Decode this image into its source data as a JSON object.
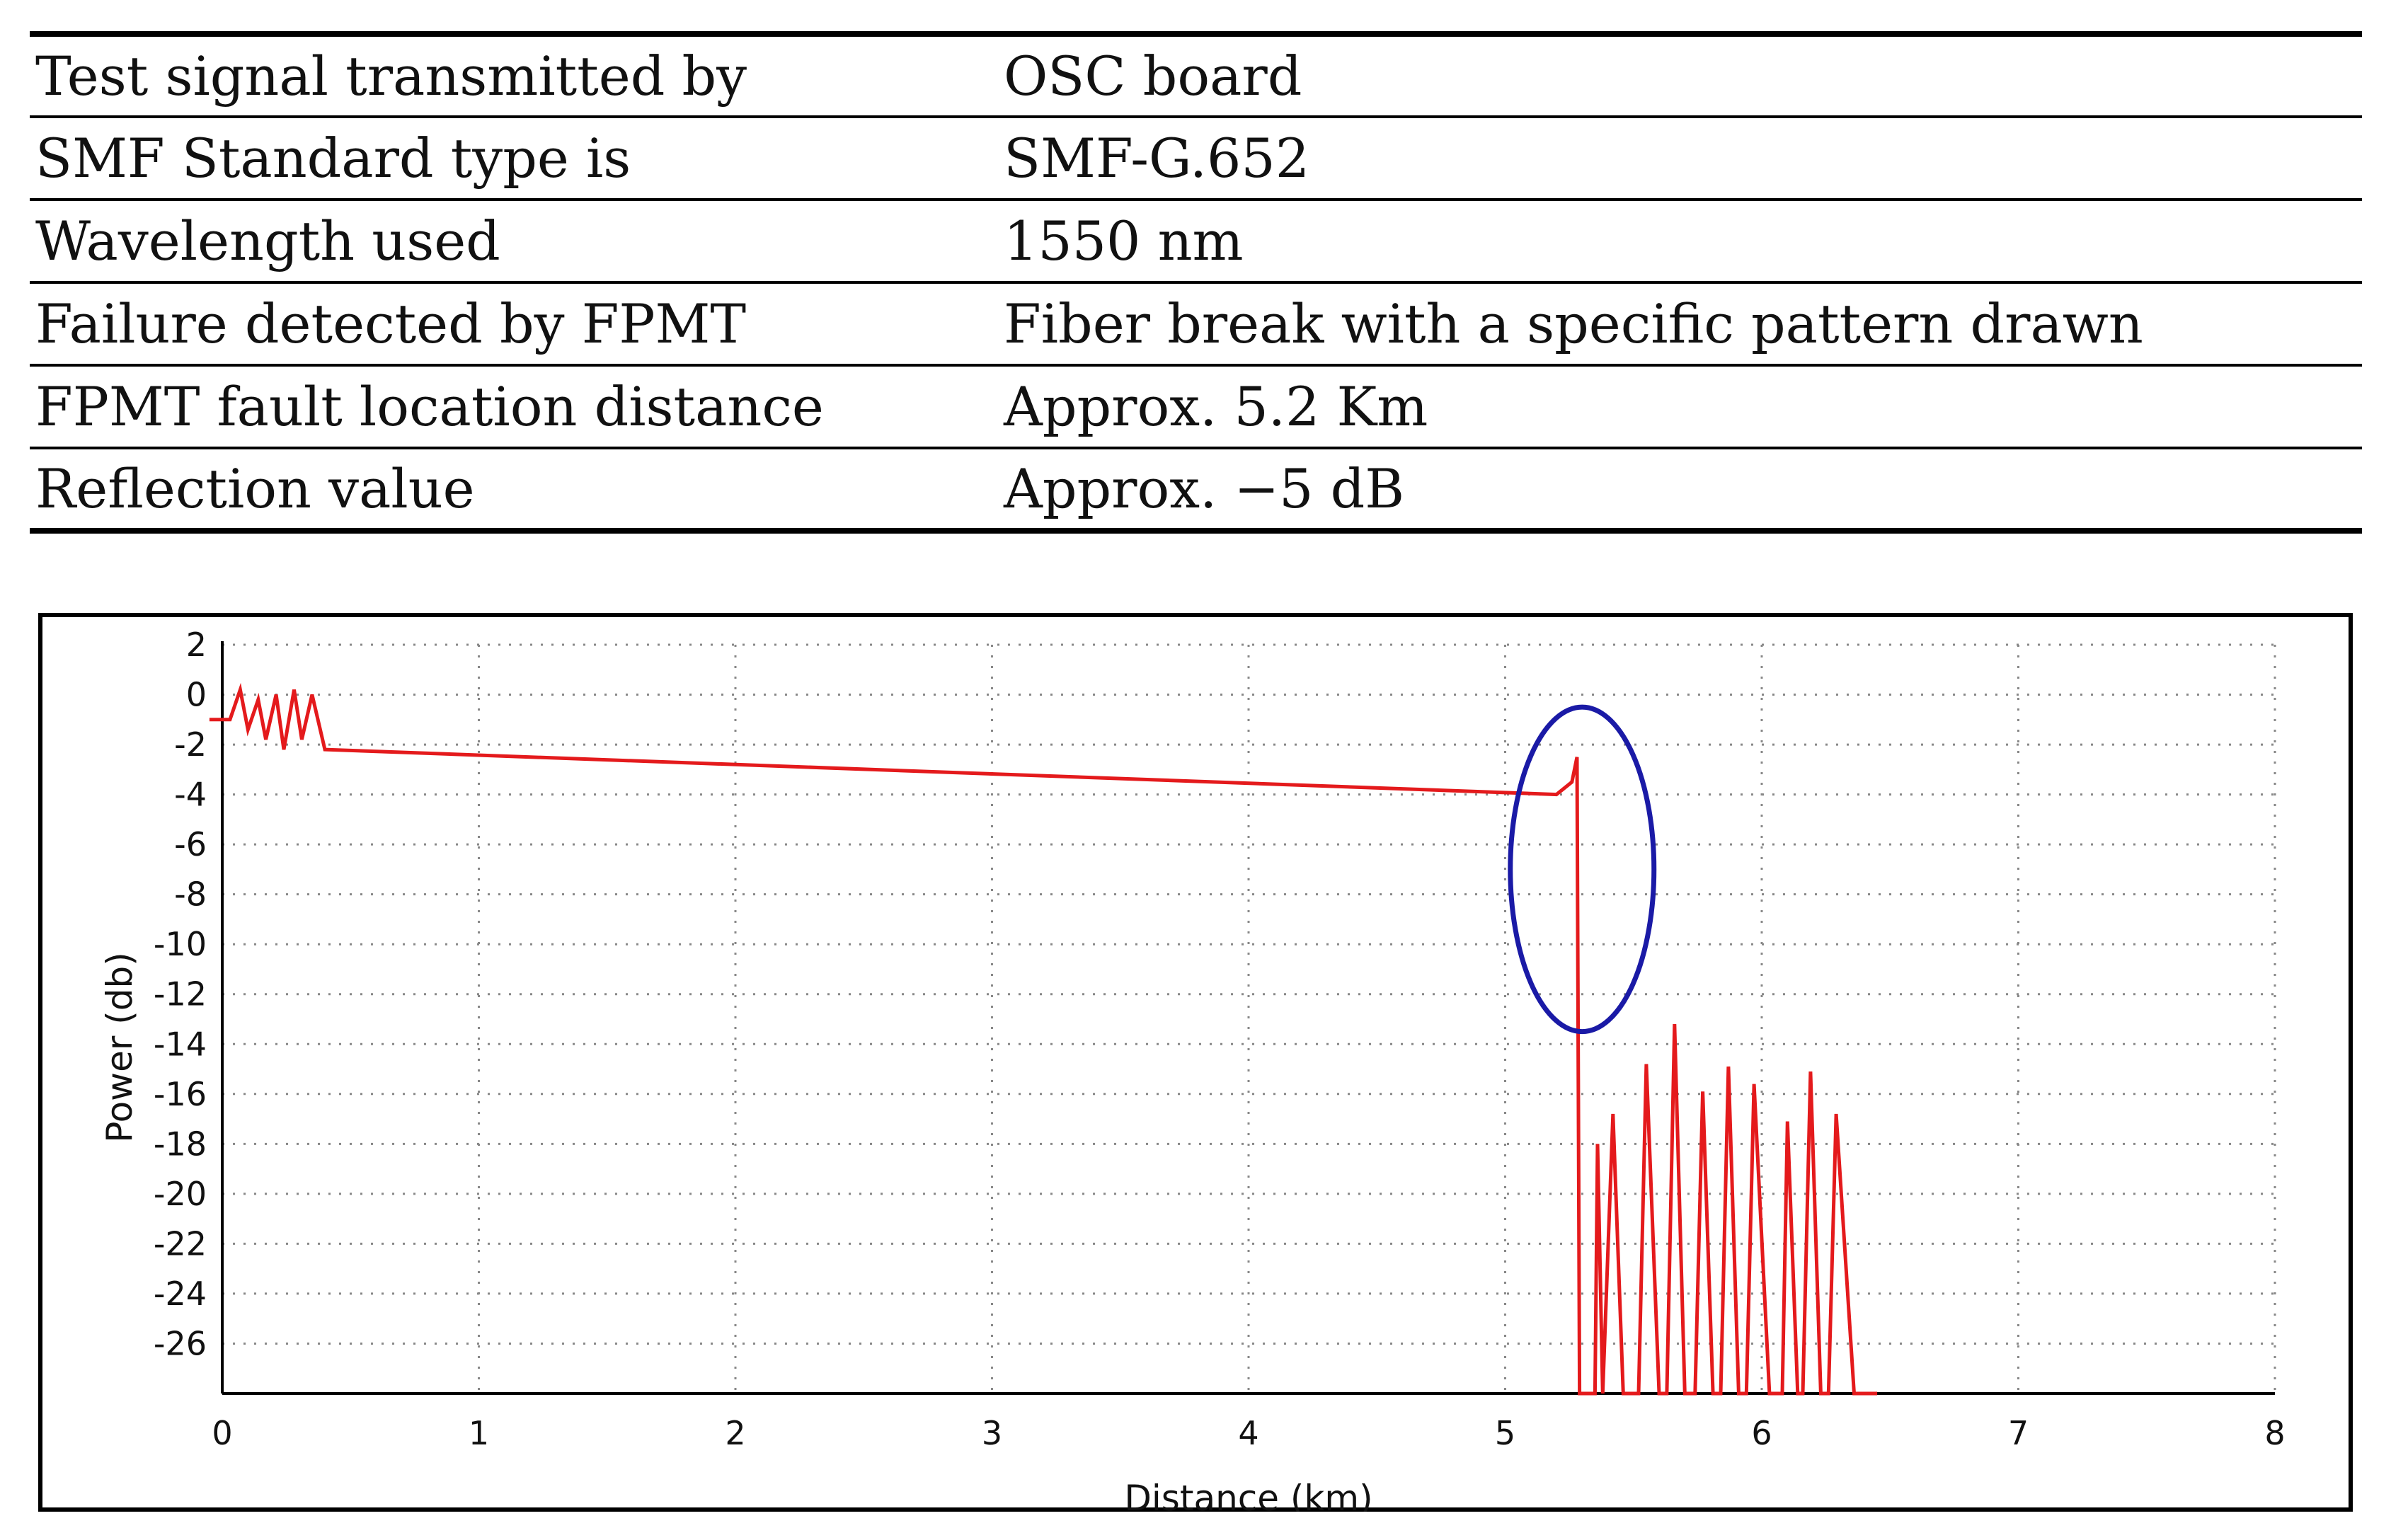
{
  "table": {
    "rows": [
      {
        "param": "Test signal transmitted by",
        "value": "OSC board"
      },
      {
        "param": "SMF Standard type is",
        "value": "SMF-G.652"
      },
      {
        "param": "Wavelength used",
        "value": "1550 nm"
      },
      {
        "param": "Failure detected by FPMT",
        "value": "Fiber break with a specific pattern drawn"
      },
      {
        "param": "FPMT fault location distance",
        "value": "Approx. 5.2 Km"
      },
      {
        "param": "Reflection value",
        "value": "Approx. −5 dB"
      }
    ]
  },
  "chart_data": {
    "type": "line",
    "title": "",
    "xlabel": "Distance (km)",
    "ylabel": "Power (db)",
    "xlim": [
      0,
      8
    ],
    "ylim": [
      -28,
      2
    ],
    "x_ticks": [
      0,
      1,
      2,
      3,
      4,
      5,
      6,
      7,
      8
    ],
    "y_ticks": [
      2,
      0,
      -2,
      -4,
      -6,
      -8,
      -10,
      -12,
      -14,
      -16,
      -18,
      -20,
      -22,
      -24,
      -26
    ],
    "grid": true,
    "colors": {
      "trace": "#e41a1c",
      "annotation": "#1a1aa6",
      "grid": "#888888",
      "axis": "#000000"
    },
    "series": [
      {
        "name": "trace",
        "points": [
          [
            -0.05,
            -1.0
          ],
          [
            0.03,
            -1.0
          ],
          [
            0.07,
            0.2
          ],
          [
            0.1,
            -1.4
          ],
          [
            0.14,
            -0.2
          ],
          [
            0.17,
            -1.8
          ],
          [
            0.21,
            0.0
          ],
          [
            0.24,
            -2.2
          ],
          [
            0.28,
            0.2
          ],
          [
            0.31,
            -1.8
          ],
          [
            0.35,
            0.0
          ],
          [
            0.4,
            -2.2
          ],
          [
            5.2,
            -4.0
          ],
          [
            5.26,
            -3.5
          ],
          [
            5.28,
            -2.5
          ],
          [
            5.29,
            -28.0
          ],
          [
            5.35,
            -28.0
          ],
          [
            5.36,
            -18.0
          ],
          [
            5.38,
            -28.0
          ],
          [
            5.42,
            -16.8
          ],
          [
            5.46,
            -28.0
          ],
          [
            5.52,
            -28.0
          ],
          [
            5.55,
            -14.8
          ],
          [
            5.6,
            -28.0
          ],
          [
            5.63,
            -28.0
          ],
          [
            5.66,
            -13.2
          ],
          [
            5.7,
            -28.0
          ],
          [
            5.74,
            -28.0
          ],
          [
            5.77,
            -15.9
          ],
          [
            5.81,
            -28.0
          ],
          [
            5.84,
            -28.0
          ],
          [
            5.87,
            -14.9
          ],
          [
            5.91,
            -28.0
          ],
          [
            5.94,
            -28.0
          ],
          [
            5.97,
            -15.6
          ],
          [
            6.03,
            -28.0
          ],
          [
            6.08,
            -28.0
          ],
          [
            6.1,
            -17.1
          ],
          [
            6.14,
            -28.0
          ],
          [
            6.16,
            -28.0
          ],
          [
            6.19,
            -15.1
          ],
          [
            6.23,
            -28.0
          ],
          [
            6.26,
            -28.0
          ],
          [
            6.29,
            -16.8
          ],
          [
            6.36,
            -28.0
          ],
          [
            6.45,
            -28.0
          ]
        ]
      }
    ],
    "annotation": {
      "shape": "ellipse",
      "center": [
        5.3,
        -7.0
      ],
      "rx_km": 0.28,
      "ry_db": 6.5
    }
  }
}
